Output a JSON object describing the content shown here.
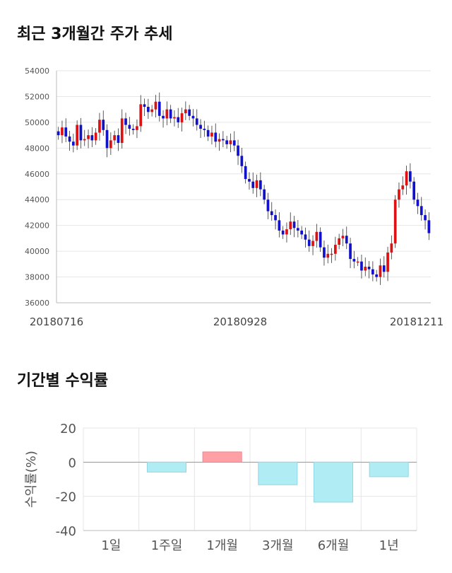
{
  "titles": {
    "price_trend": "최근 3개월간 주가 추세",
    "period_return": "기간별 수익률"
  },
  "colors": {
    "up": "#dd1111",
    "down": "#1111cc",
    "bar_positive": "#ff9fa6",
    "bar_negative": "#b0ecf4",
    "grid": "#e6e6e6"
  },
  "chart_data": [
    {
      "type": "candlestick",
      "title": "최근 3개월간 주가 추세",
      "ylim": [
        36000,
        54000
      ],
      "y_ticks": [
        36000,
        38000,
        40000,
        42000,
        44000,
        46000,
        48000,
        50000,
        52000,
        54000
      ],
      "x_tick_labels": [
        "20180716",
        "20180928",
        "20181211"
      ],
      "approx_close": [
        49000,
        49600,
        48900,
        48500,
        48200,
        49800,
        48600,
        48700,
        49000,
        48600,
        49200,
        50200,
        49400,
        48000,
        48600,
        49000,
        48400,
        50300,
        49800,
        49500,
        49400,
        49700,
        51400,
        51200,
        50800,
        51000,
        51600,
        50500,
        50300,
        51000,
        50300,
        50400,
        50000,
        50700,
        51000,
        50500,
        50300,
        49800,
        49500,
        49400,
        48900,
        49200,
        48500,
        48700,
        48600,
        48300,
        48600,
        48200,
        47400,
        46600,
        45600,
        45400,
        44900,
        45500,
        44800,
        44000,
        43100,
        42800,
        42400,
        41600,
        41300,
        41700,
        42300,
        41800,
        41600,
        41300,
        40900,
        40400,
        40800,
        41500,
        40300,
        39500,
        39800,
        39800,
        40500,
        41000,
        41200,
        40600,
        39400,
        39200,
        39200,
        38500,
        38800,
        38600,
        38200,
        38000,
        38900,
        38400,
        39900,
        40600,
        44000,
        44800,
        45100,
        46200,
        45400,
        44000,
        43500,
        42800,
        42400,
        41400
      ]
    },
    {
      "type": "bar",
      "title": "기간별 수익률",
      "ylabel": "수익률(%)",
      "ylim": [
        -40,
        20
      ],
      "y_ticks": [
        20,
        0,
        -20,
        -40
      ],
      "categories": [
        "1일",
        "1주일",
        "1개월",
        "3개월",
        "6개월",
        "1년"
      ],
      "values": [
        0,
        -5.8,
        6.0,
        -13.2,
        -23.4,
        -8.5
      ]
    }
  ]
}
